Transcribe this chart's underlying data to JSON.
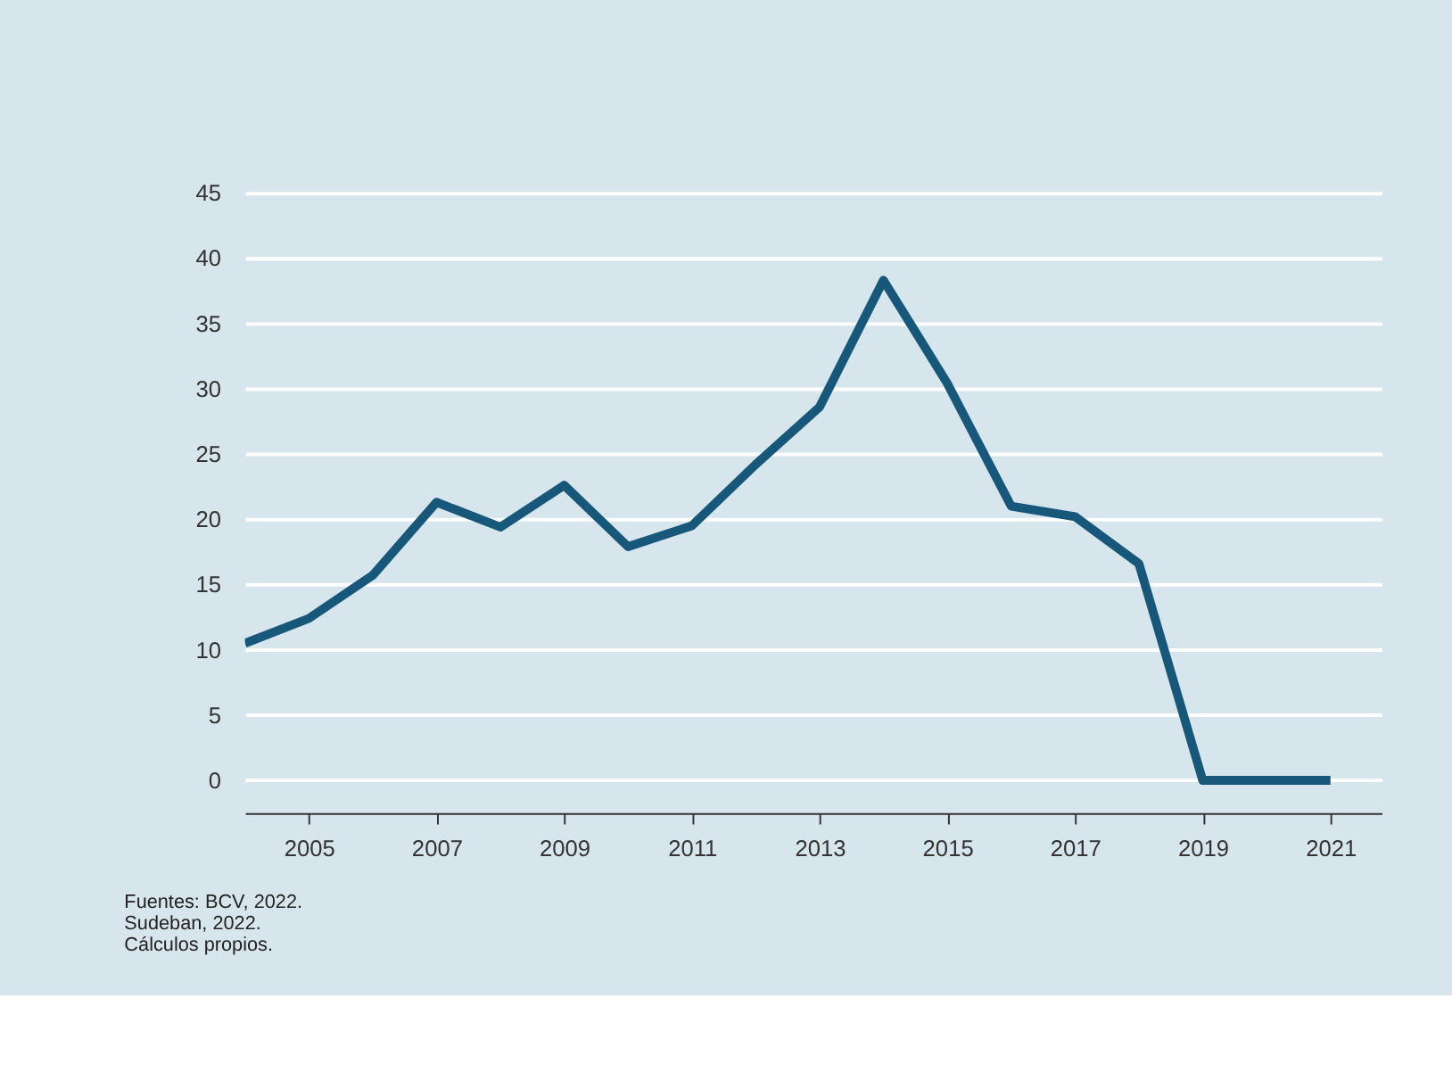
{
  "chart_data": {
    "type": "line",
    "x": [
      2004,
      2005,
      2006,
      2007,
      2008,
      2009,
      2010,
      2011,
      2012,
      2013,
      2014,
      2015,
      2016,
      2017,
      2018,
      2019,
      2020,
      2021
    ],
    "series": [
      {
        "color": "#17587a",
        "values": [
          10.5,
          12.4,
          15.7,
          21.3,
          19.4,
          22.6,
          17.9,
          19.5,
          24.2,
          28.6,
          38.3,
          30.4,
          21.0,
          20.2,
          16.6,
          0,
          0,
          0
        ]
      }
    ],
    "xlim": [
      2004,
      2021.8
    ],
    "xticks": [
      2005,
      2007,
      2009,
      2011,
      2013,
      2015,
      2017,
      2019,
      2021
    ],
    "ylim": [
      -2.5,
      45
    ],
    "yticks": [
      0,
      5,
      10,
      15,
      20,
      25,
      30,
      35,
      40,
      45
    ],
    "grid": "y",
    "legend": false,
    "marker": "none",
    "line_style": "solid",
    "annotations": [
      "Fuentes: BCV, 2022.",
      "Sudeban, 2022.",
      "Cálculos propios."
    ]
  }
}
